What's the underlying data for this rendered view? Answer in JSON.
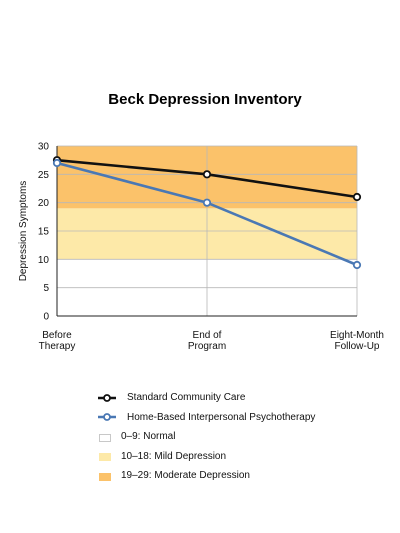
{
  "chart_data": {
    "type": "line",
    "title": "Beck Depression Inventory",
    "ylabel": "Depression Symptoms",
    "xlabel": "",
    "ylim": [
      0,
      30
    ],
    "yticks": [
      0,
      5,
      10,
      15,
      20,
      25,
      30
    ],
    "categories": [
      [
        "Before",
        "Therapy"
      ],
      [
        "End of",
        "Program"
      ],
      [
        "Eight-Month",
        "Follow-Up"
      ]
    ],
    "series": [
      {
        "name": "Standard Community Care",
        "values": [
          27.5,
          25,
          21
        ],
        "color": "#111111"
      },
      {
        "name": "Home-Based Interpersonal Psychotherapy",
        "values": [
          27,
          20,
          9
        ],
        "color": "#4a78b4"
      }
    ],
    "bands": [
      {
        "name": "0–9: Normal",
        "from": 0,
        "to": 10,
        "color": "#ffffff"
      },
      {
        "name": "10–18: Mild Depression",
        "from": 10,
        "to": 19,
        "color": "#fde9a8"
      },
      {
        "name": "19–29: Moderate Depression",
        "from": 19,
        "to": 30,
        "color": "#fbc26a"
      }
    ],
    "grid": true,
    "legend_position": "bottom"
  }
}
